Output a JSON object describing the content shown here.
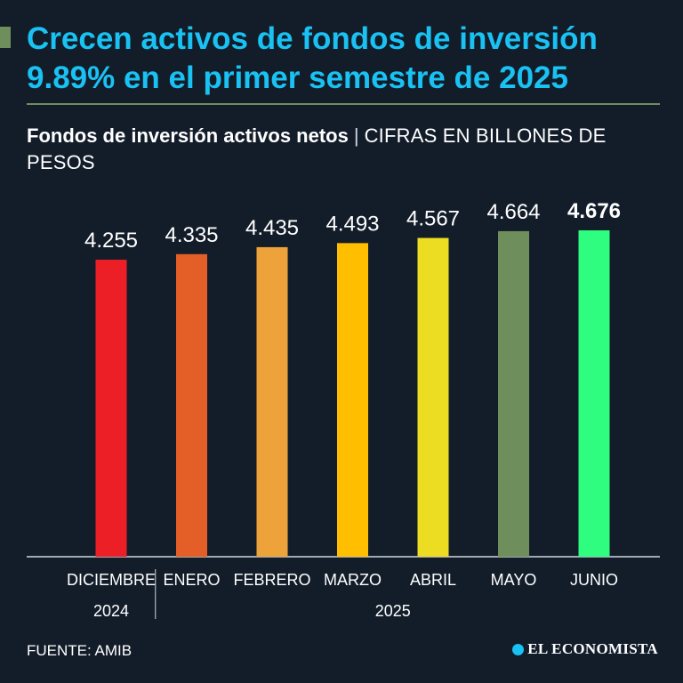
{
  "header": {
    "title": "Crecen activos de fondos de inversión 9.89% en el primer semestre de 2025",
    "subtitle_bold": "Fondos de inversión activos netos",
    "separator": "|",
    "subtitle_units": "CIFRAS EN BILLONES DE PESOS"
  },
  "footer": {
    "source": "FUENTE: AMIB",
    "logo_text": "EL ECONOMISTA"
  },
  "colors": {
    "background": "#131d2a",
    "title": "#19c2f3",
    "accent": "#6e8e5b"
  },
  "chart_data": {
    "type": "bar",
    "title": "Fondos de inversión activos netos",
    "ylabel": "CIFRAS EN BILLONES DE PESOS",
    "xlabel": "",
    "categories": [
      "DICIEMBRE",
      "ENERO",
      "FEBRERO",
      "MARZO",
      "ABRIL",
      "MAYO",
      "JUNIO"
    ],
    "year_groups": [
      {
        "label": "2024",
        "categories": [
          "DICIEMBRE"
        ]
      },
      {
        "label": "2025",
        "categories": [
          "ENERO",
          "FEBRERO",
          "MARZO",
          "ABRIL",
          "MAYO",
          "JUNIO"
        ]
      }
    ],
    "values": [
      4.255,
      4.335,
      4.435,
      4.493,
      4.567,
      4.664,
      4.676
    ],
    "value_labels": [
      "4.255",
      "4.335",
      "4.435",
      "4.493",
      "4.567",
      "4.664",
      "4.676"
    ],
    "highlight_index": 6,
    "bar_colors": [
      "#ec1f26",
      "#e45e28",
      "#eda33a",
      "#ffbf00",
      "#ecdd22",
      "#6e8e5b",
      "#2ffd7f"
    ],
    "ylim": [
      0,
      4.676
    ],
    "grid": false
  }
}
